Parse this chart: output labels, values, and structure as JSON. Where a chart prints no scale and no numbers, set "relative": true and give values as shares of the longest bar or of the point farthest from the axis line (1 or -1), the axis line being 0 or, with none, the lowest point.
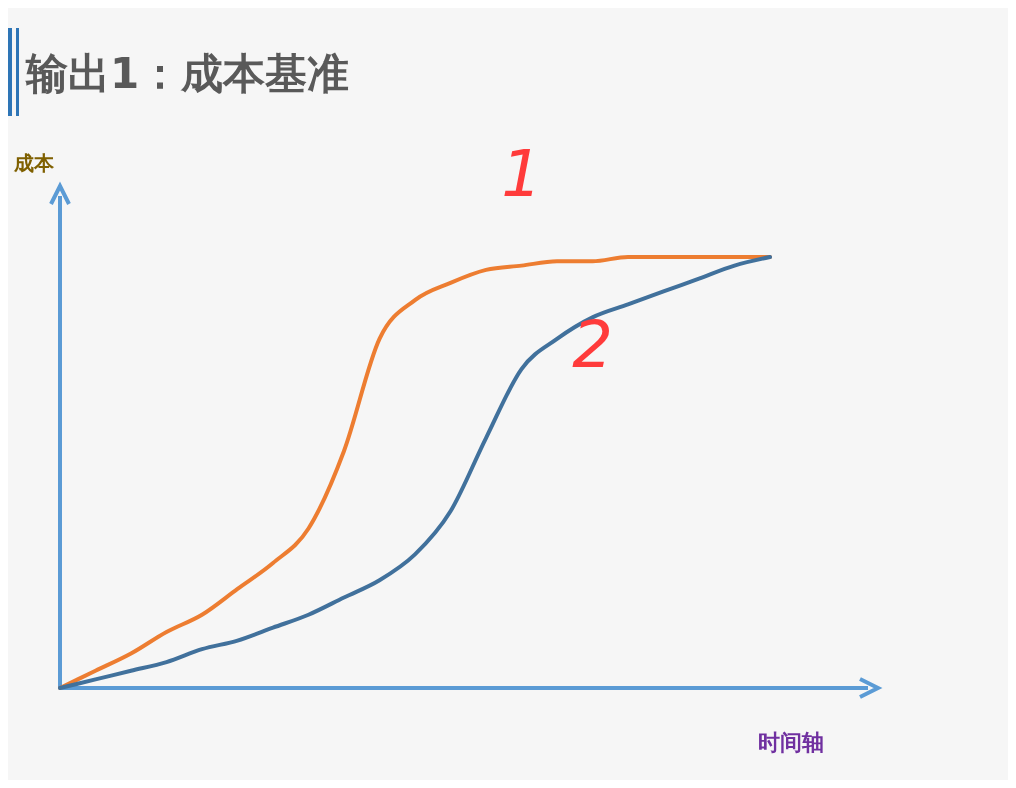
{
  "chart_data": {
    "type": "line",
    "title": "输出1：成本基准",
    "xlabel": "时间轴",
    "ylabel": "成本",
    "relative": true,
    "categories": [
      null,
      null,
      null,
      null,
      null,
      null,
      null,
      null,
      null,
      null,
      null,
      null,
      null,
      null,
      null,
      null,
      null,
      null,
      null,
      null,
      null
    ],
    "series": [
      {
        "name": "1",
        "color": "#ed7d31",
        "values": [
          0,
          0.04,
          0.08,
          0.13,
          0.17,
          0.23,
          0.29,
          0.37,
          0.55,
          0.81,
          0.9,
          0.94,
          0.97,
          0.98,
          0.99,
          0.99,
          1,
          1,
          1,
          1,
          1
        ]
      },
      {
        "name": "2",
        "color": "#41719c",
        "values": [
          0,
          0.02,
          0.04,
          0.06,
          0.09,
          0.11,
          0.14,
          0.17,
          0.21,
          0.25,
          0.31,
          0.41,
          0.58,
          0.74,
          0.81,
          0.86,
          0.89,
          0.92,
          0.95,
          0.98,
          1
        ]
      }
    ]
  }
}
